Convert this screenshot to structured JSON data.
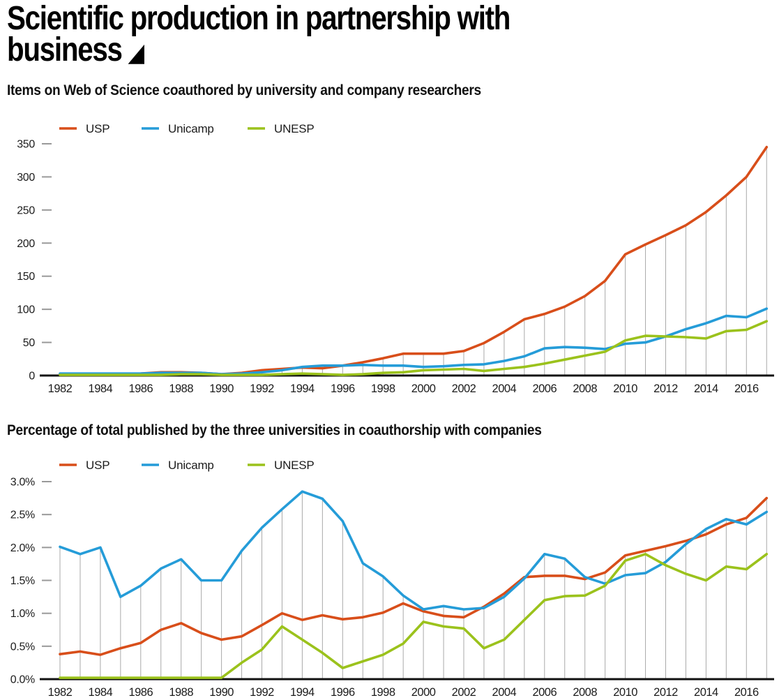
{
  "header": {
    "title_line1": "Scientific production in partnership with",
    "title_line2": "business",
    "marker": "◢"
  },
  "chart_data": [
    {
      "type": "line",
      "title": "Items on Web of Science coauthored by university and company researchers",
      "x": [
        1982,
        1983,
        1984,
        1985,
        1986,
        1987,
        1988,
        1989,
        1990,
        1991,
        1992,
        1993,
        1994,
        1995,
        1996,
        1997,
        1998,
        1999,
        2000,
        2001,
        2002,
        2003,
        2004,
        2005,
        2006,
        2007,
        2008,
        2009,
        2010,
        2011,
        2012,
        2013,
        2014,
        2015,
        2016,
        2017
      ],
      "x_tick_labels": [
        "1982",
        "1984",
        "1986",
        "1988",
        "1990",
        "1992",
        "1994",
        "1996",
        "1998",
        "2000",
        "2002",
        "2004",
        "2006",
        "2008",
        "2010",
        "2012",
        "2014",
        "2016"
      ],
      "ylim": [
        0,
        350
      ],
      "yticks": [
        0,
        50,
        100,
        150,
        200,
        250,
        300,
        350
      ],
      "ytick_labels": [
        "0",
        "50",
        "100",
        "150",
        "200",
        "250",
        "300",
        "350"
      ],
      "grid": "vertical drop line at every year up to top series",
      "legend_position": "top-left",
      "series": [
        {
          "name": "USP",
          "color": "#d84e1a",
          "values": [
            2,
            2,
            2,
            2,
            3,
            5,
            5,
            4,
            2,
            4,
            8,
            10,
            12,
            11,
            15,
            20,
            26,
            33,
            33,
            33,
            37,
            49,
            66,
            85,
            93,
            104,
            120,
            143,
            183,
            198,
            212,
            227,
            247,
            272,
            300,
            345
          ]
        },
        {
          "name": "Unicamp",
          "color": "#259cd8",
          "values": [
            3,
            3,
            3,
            3,
            3,
            4,
            4,
            4,
            2,
            3,
            5,
            8,
            13,
            15,
            15,
            16,
            15,
            15,
            13,
            14,
            16,
            17,
            22,
            29,
            41,
            43,
            42,
            40,
            48,
            50,
            59,
            70,
            79,
            90,
            88,
            101
          ]
        },
        {
          "name": "UNESP",
          "color": "#9bc21c",
          "values": [
            1,
            1,
            1,
            1,
            1,
            1,
            2,
            2,
            1,
            1,
            1,
            2,
            3,
            2,
            1,
            2,
            4,
            5,
            8,
            9,
            10,
            7,
            10,
            13,
            18,
            24,
            30,
            36,
            53,
            60,
            59,
            58,
            56,
            67,
            69,
            82
          ]
        }
      ]
    },
    {
      "type": "line",
      "title": "Percentage of total published by the three universities in coauthorship with companies",
      "x": [
        1982,
        1983,
        1984,
        1985,
        1986,
        1987,
        1988,
        1989,
        1990,
        1991,
        1992,
        1993,
        1994,
        1995,
        1996,
        1997,
        1998,
        1999,
        2000,
        2001,
        2002,
        2003,
        2004,
        2005,
        2006,
        2007,
        2008,
        2009,
        2010,
        2011,
        2012,
        2013,
        2014,
        2015,
        2016,
        2017
      ],
      "x_tick_labels": [
        "1982",
        "1984",
        "1986",
        "1988",
        "1990",
        "1992",
        "1994",
        "1996",
        "1998",
        "2000",
        "2002",
        "2004",
        "2006",
        "2008",
        "2010",
        "2012",
        "2014",
        "2016"
      ],
      "ylim": [
        0,
        3.0
      ],
      "yticks": [
        0,
        0.5,
        1.0,
        1.5,
        2.0,
        2.5,
        3.0
      ],
      "ytick_labels": [
        "0.0%",
        "0.5%",
        "1.0%",
        "1.5%",
        "2.0%",
        "2.5%",
        "3.0%"
      ],
      "grid": "vertical drop line at every year up to top series",
      "legend_position": "top-left",
      "series": [
        {
          "name": "USP",
          "color": "#d84e1a",
          "values": [
            0.38,
            0.42,
            0.37,
            0.47,
            0.55,
            0.75,
            0.85,
            0.7,
            0.6,
            0.65,
            0.82,
            1.0,
            0.9,
            0.97,
            0.91,
            0.94,
            1.01,
            1.15,
            1.03,
            0.96,
            0.94,
            1.1,
            1.3,
            1.55,
            1.57,
            1.57,
            1.52,
            1.62,
            1.88,
            1.95,
            2.02,
            2.1,
            2.2,
            2.35,
            2.45,
            2.75
          ]
        },
        {
          "name": "Unicamp",
          "color": "#259cd8",
          "values": [
            2.01,
            1.9,
            2.0,
            1.25,
            1.42,
            1.68,
            1.82,
            1.5,
            1.5,
            1.95,
            2.3,
            2.58,
            2.85,
            2.74,
            2.4,
            1.76,
            1.56,
            1.27,
            1.06,
            1.11,
            1.06,
            1.08,
            1.25,
            1.53,
            1.9,
            1.83,
            1.55,
            1.45,
            1.58,
            1.61,
            1.78,
            2.05,
            2.28,
            2.43,
            2.35,
            2.54
          ]
        },
        {
          "name": "UNESP",
          "color": "#9bc21c",
          "values": [
            0.02,
            0.02,
            0.02,
            0.02,
            0.02,
            0.02,
            0.02,
            0.02,
            0.02,
            0.25,
            0.45,
            0.8,
            0.6,
            0.4,
            0.17,
            0.27,
            0.37,
            0.54,
            0.87,
            0.8,
            0.77,
            0.47,
            0.6,
            0.9,
            1.2,
            1.26,
            1.27,
            1.42,
            1.8,
            1.9,
            1.73,
            1.6,
            1.5,
            1.71,
            1.67,
            1.9
          ]
        }
      ]
    }
  ]
}
